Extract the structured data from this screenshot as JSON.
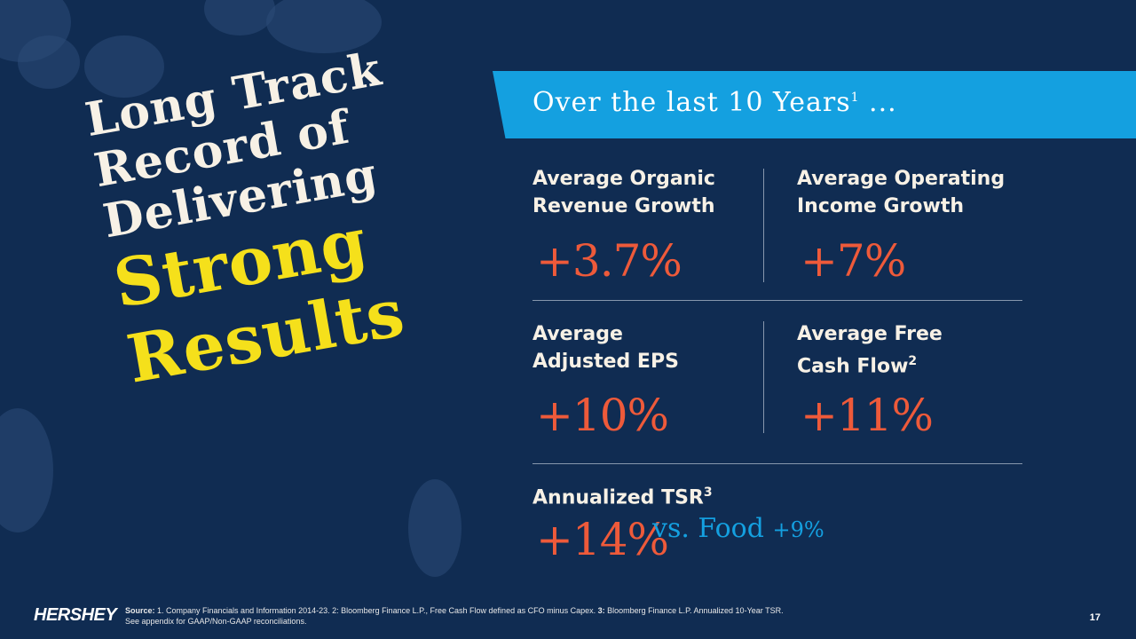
{
  "headline": {
    "line1": "Long Track",
    "line2": "Record of",
    "line3": "Delivering",
    "highlight1": "Strong",
    "highlight2": "Results"
  },
  "banner": {
    "text": "Over the last 10 Years",
    "footnote": "1",
    "suffix": " ..."
  },
  "metrics": {
    "organic": {
      "label_line1": "Average Organic",
      "label_line2": "Revenue Growth",
      "value": "+3.7%"
    },
    "operating": {
      "label_line1": "Average Operating",
      "label_line2": "Income Growth",
      "value": "+7%"
    },
    "eps": {
      "label_line1": "Average",
      "label_line2": "Adjusted EPS",
      "value": "+10%"
    },
    "fcf": {
      "label_line1": "Average Free",
      "label_line2": "Cash Flow",
      "footnote": "2",
      "value": "+11%"
    },
    "tsr": {
      "label": "Annualized TSR",
      "footnote": "3",
      "value": "+14%",
      "vs_text": "vs. Food ",
      "vs_value": "+9%"
    }
  },
  "footer": {
    "logo": "HERSHEY",
    "source_label": "Source:",
    "source_text1": " 1. Company Financials and Information 2014-23. 2: Bloomberg Finance L.P., Free Cash Flow defined as CFO minus Capex. ",
    "source_bold3": "3:",
    "source_text2": " Bloomberg Finance L.P. Annualized 10-Year TSR.",
    "source_line2": "See appendix for GAAP/Non-GAAP reconciliations.",
    "page_number": "17"
  },
  "colors": {
    "background": "#102c52",
    "accent_yellow": "#f5e01b",
    "accent_orange": "#ee5a3a",
    "accent_blue": "#14a0e0"
  }
}
